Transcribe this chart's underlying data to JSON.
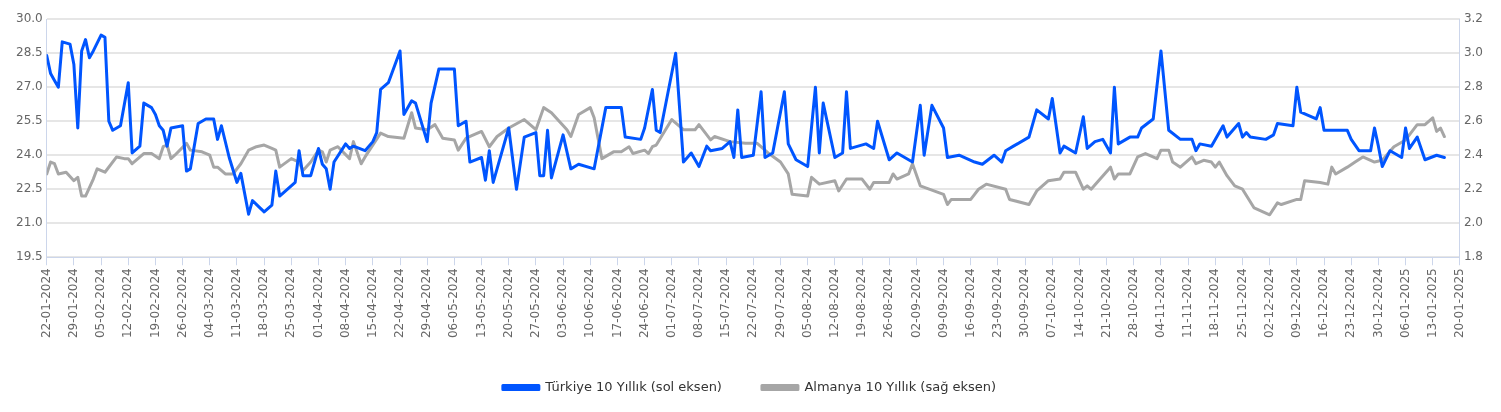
{
  "chart_data": {
    "type": "line",
    "legend": "bottom",
    "grid": "y",
    "line_style": "solid",
    "xlim": [
      "2024-01-22",
      "2025-01-20"
    ],
    "xticks": [
      {
        "value": "2024-01-22",
        "label": "22-01-2024"
      },
      {
        "value": "2024-01-29",
        "label": "29-01-2024"
      },
      {
        "value": "2024-02-05",
        "label": "05-02-2024"
      },
      {
        "value": "2024-02-12",
        "label": "12-02-2024"
      },
      {
        "value": "2024-02-19",
        "label": "19-02-2024"
      },
      {
        "value": "2024-02-26",
        "label": "26-02-2024"
      },
      {
        "value": "2024-03-04",
        "label": "04-03-2024"
      },
      {
        "value": "2024-03-11",
        "label": "11-03-2024"
      },
      {
        "value": "2024-03-18",
        "label": "18-03-2024"
      },
      {
        "value": "2024-03-25",
        "label": "25-03-2024"
      },
      {
        "value": "2024-04-01",
        "label": "01-04-2024"
      },
      {
        "value": "2024-04-08",
        "label": "08-04-2024"
      },
      {
        "value": "2024-04-15",
        "label": "15-04-2024"
      },
      {
        "value": "2024-04-22",
        "label": "22-04-2024"
      },
      {
        "value": "2024-04-29",
        "label": "29-04-2024"
      },
      {
        "value": "2024-05-06",
        "label": "06-05-2024"
      },
      {
        "value": "2024-05-13",
        "label": "13-05-2024"
      },
      {
        "value": "2024-05-20",
        "label": "20-05-2024"
      },
      {
        "value": "2024-05-27",
        "label": "27-05-2024"
      },
      {
        "value": "2024-06-03",
        "label": "03-06-2024"
      },
      {
        "value": "2024-06-10",
        "label": "10-06-2024"
      },
      {
        "value": "2024-06-17",
        "label": "17-06-2024"
      },
      {
        "value": "2024-06-24",
        "label": "24-06-2024"
      },
      {
        "value": "2024-07-01",
        "label": "01-07-2024"
      },
      {
        "value": "2024-07-08",
        "label": "08-07-2024"
      },
      {
        "value": "2024-07-15",
        "label": "15-07-2024"
      },
      {
        "value": "2024-07-22",
        "label": "22-07-2024"
      },
      {
        "value": "2024-07-29",
        "label": "29-07-2024"
      },
      {
        "value": "2024-08-05",
        "label": "05-08-2024"
      },
      {
        "value": "2024-08-12",
        "label": "12-08-2024"
      },
      {
        "value": "2024-08-19",
        "label": "19-08-2024"
      },
      {
        "value": "2024-08-26",
        "label": "26-08-2024"
      },
      {
        "value": "2024-09-02",
        "label": "02-09-2024"
      },
      {
        "value": "2024-09-09",
        "label": "09-09-2024"
      },
      {
        "value": "2024-09-16",
        "label": "16-09-2024"
      },
      {
        "value": "2024-09-23",
        "label": "23-09-2024"
      },
      {
        "value": "2024-09-30",
        "label": "30-09-2024"
      },
      {
        "value": "2024-10-07",
        "label": "07-10-2024"
      },
      {
        "value": "2024-10-14",
        "label": "14-10-2024"
      },
      {
        "value": "2024-10-21",
        "label": "21-10-2024"
      },
      {
        "value": "2024-10-28",
        "label": "28-10-2024"
      },
      {
        "value": "2024-11-04",
        "label": "04-11-2024"
      },
      {
        "value": "2024-11-11",
        "label": "11-11-2024"
      },
      {
        "value": "2024-11-18",
        "label": "18-11-2024"
      },
      {
        "value": "2024-11-25",
        "label": "25-11-2024"
      },
      {
        "value": "2024-12-02",
        "label": "02-12-2024"
      },
      {
        "value": "2024-12-09",
        "label": "09-12-2024"
      },
      {
        "value": "2024-12-16",
        "label": "16-12-2024"
      },
      {
        "value": "2024-12-23",
        "label": "23-12-2024"
      },
      {
        "value": "2024-12-30",
        "label": "30-12-2024"
      },
      {
        "value": "2025-01-06",
        "label": "06-01-2025"
      },
      {
        "value": "2025-01-13",
        "label": "13-01-2025"
      },
      {
        "value": "2025-01-20",
        "label": "20-01-2025"
      }
    ],
    "ylim": [
      19.5,
      30
    ],
    "yticks": [
      19.5,
      {
        "value": 21,
        "label": "21.0"
      },
      22.5,
      {
        "value": 24,
        "label": "24.0"
      },
      25.5,
      {
        "value": 27,
        "label": "27.0"
      },
      28.5,
      {
        "value": 30,
        "label": "30.0"
      }
    ],
    "y2lim": [
      1.8,
      3.2
    ],
    "y2ticks": [
      1.8,
      {
        "value": 2,
        "label": "2.0"
      },
      2.2,
      2.4,
      2.6,
      2.8,
      {
        "value": 3,
        "label": "3.0"
      },
      3.2
    ],
    "series": [
      {
        "name": "Türkiye 10 Yıllık (sol eksen)",
        "color": "#0055ff",
        "x": [
          "2024-01-22",
          "2024-01-23",
          "2024-01-24",
          "2024-01-25",
          "2024-01-26",
          "2024-01-28",
          "2024-01-29",
          "2024-01-30",
          "2024-01-31",
          "2024-02-01",
          "2024-02-02",
          "2024-02-03",
          "2024-02-05",
          "2024-02-06",
          "2024-02-07",
          "2024-02-08",
          "2024-02-10",
          "2024-02-12",
          "2024-02-13",
          "2024-02-15",
          "2024-02-16",
          "2024-02-18",
          "2024-02-19",
          "2024-02-20",
          "2024-02-21",
          "2024-02-22",
          "2024-02-23",
          "2024-02-26",
          "2024-02-27",
          "2024-02-28",
          "2024-03-01",
          "2024-03-03",
          "2024-03-05",
          "2024-03-06",
          "2024-03-07",
          "2024-03-09",
          "2024-03-11",
          "2024-03-12",
          "2024-03-14",
          "2024-03-15",
          "2024-03-18",
          "2024-03-20",
          "2024-03-21",
          "2024-03-22",
          "2024-03-26",
          "2024-03-27",
          "2024-03-28",
          "2024-03-30",
          "2024-04-01",
          "2024-04-02",
          "2024-04-03",
          "2024-04-04",
          "2024-04-05",
          "2024-04-08",
          "2024-04-09",
          "2024-04-10",
          "2024-04-13",
          "2024-04-15",
          "2024-04-16",
          "2024-04-17",
          "2024-04-19",
          "2024-04-22",
          "2024-04-23",
          "2024-04-25",
          "2024-04-26",
          "2024-04-29",
          "2024-04-30",
          "2024-05-02",
          "2024-05-06",
          "2024-05-07",
          "2024-05-09",
          "2024-05-10",
          "2024-05-13",
          "2024-05-14",
          "2024-05-15",
          "2024-05-16",
          "2024-05-20",
          "2024-05-22",
          "2024-05-24",
          "2024-05-27",
          "2024-05-28",
          "2024-05-29",
          "2024-05-30",
          "2024-05-31",
          "2024-06-03",
          "2024-06-05",
          "2024-06-07",
          "2024-06-11",
          "2024-06-14",
          "2024-06-18",
          "2024-06-19",
          "2024-06-23",
          "2024-06-24",
          "2024-06-26",
          "2024-06-27",
          "2024-06-28",
          "2024-07-02",
          "2024-07-04",
          "2024-07-06",
          "2024-07-08",
          "2024-07-10",
          "2024-07-11",
          "2024-07-14",
          "2024-07-16",
          "2024-07-17",
          "2024-07-18",
          "2024-07-19",
          "2024-07-22",
          "2024-07-24",
          "2024-07-25",
          "2024-07-27",
          "2024-07-30",
          "2024-07-31",
          "2024-08-02",
          "2024-08-05",
          "2024-08-07",
          "2024-08-08",
          "2024-08-09",
          "2024-08-12",
          "2024-08-14",
          "2024-08-15",
          "2024-08-16",
          "2024-08-20",
          "2024-08-22",
          "2024-08-23",
          "2024-08-26",
          "2024-08-28",
          "2024-09-01",
          "2024-09-03",
          "2024-09-04",
          "2024-09-06",
          "2024-09-09",
          "2024-09-10",
          "2024-09-13",
          "2024-09-17",
          "2024-09-19",
          "2024-09-22",
          "2024-09-24",
          "2024-09-25",
          "2024-09-27",
          "2024-10-01",
          "2024-10-03",
          "2024-10-06",
          "2024-10-07",
          "2024-10-09",
          "2024-10-10",
          "2024-10-13",
          "2024-10-15",
          "2024-10-16",
          "2024-10-18",
          "2024-10-20",
          "2024-10-22",
          "2024-10-23",
          "2024-10-24",
          "2024-10-27",
          "2024-10-29",
          "2024-10-30",
          "2024-11-02",
          "2024-11-04",
          "2024-11-06",
          "2024-11-09",
          "2024-11-12",
          "2024-11-13",
          "2024-11-14",
          "2024-11-17",
          "2024-11-20",
          "2024-11-21",
          "2024-11-24",
          "2024-11-25",
          "2024-11-26",
          "2024-11-27",
          "2024-12-01",
          "2024-12-03",
          "2024-12-04",
          "2024-12-08",
          "2024-12-09",
          "2024-12-10",
          "2024-12-14",
          "2024-12-15",
          "2024-12-16",
          "2024-12-22",
          "2024-12-23",
          "2024-12-25",
          "2024-12-28",
          "2024-12-29",
          "2024-12-30",
          "2024-12-31",
          "2025-01-02",
          "2025-01-05",
          "2025-01-06",
          "2025-01-07",
          "2025-01-09",
          "2025-01-11",
          "2025-01-14",
          "2025-01-16"
        ],
        "values": [
          28.4,
          27.6,
          27.3,
          27.0,
          29.0,
          28.9,
          28.0,
          25.2,
          28.6,
          29.1,
          28.3,
          28.6,
          29.3,
          29.2,
          25.5,
          25.1,
          25.3,
          27.2,
          24.1,
          24.4,
          26.3,
          26.1,
          25.8,
          25.3,
          25.1,
          24.4,
          25.2,
          25.3,
          23.3,
          23.4,
          25.4,
          25.6,
          25.6,
          24.7,
          25.3,
          23.9,
          22.8,
          23.2,
          21.4,
          22.0,
          21.5,
          21.8,
          23.3,
          22.2,
          22.8,
          24.2,
          23.1,
          23.1,
          24.3,
          23.6,
          23.4,
          22.5,
          23.7,
          24.5,
          24.3,
          24.4,
          24.2,
          24.6,
          25.0,
          26.9,
          27.2,
          28.6,
          25.8,
          26.4,
          26.3,
          24.6,
          26.3,
          27.8,
          27.8,
          25.3,
          25.5,
          23.7,
          23.9,
          22.9,
          24.2,
          22.8,
          25.2,
          22.5,
          24.8,
          25.0,
          23.1,
          23.1,
          25.1,
          23.0,
          24.9,
          23.4,
          23.6,
          23.4,
          26.1,
          26.1,
          24.8,
          24.7,
          25.2,
          26.9,
          25.1,
          25.0,
          28.5,
          23.7,
          24.1,
          23.5,
          24.4,
          24.2,
          24.3,
          24.6,
          23.9,
          26.0,
          23.9,
          24.0,
          26.8,
          23.9,
          24.1,
          26.8,
          24.5,
          23.8,
          23.5,
          27.0,
          24.1,
          26.3,
          23.9,
          24.1,
          26.8,
          24.3,
          24.5,
          24.3,
          25.5,
          23.8,
          24.1,
          23.7,
          26.2,
          24.0,
          26.2,
          25.2,
          23.9,
          24.0,
          23.7,
          23.6,
          24.0,
          23.7,
          24.2,
          24.4,
          24.8,
          26.0,
          25.6,
          26.5,
          24.1,
          24.4,
          24.1,
          25.7,
          24.3,
          24.6,
          24.7,
          24.1,
          27.0,
          24.5,
          24.8,
          24.8,
          25.2,
          25.6,
          28.6,
          25.1,
          24.7,
          24.7,
          24.2,
          24.5,
          24.4,
          25.3,
          24.8,
          25.4,
          24.8,
          25.0,
          24.8,
          24.7,
          24.9,
          25.4,
          25.3,
          27.0,
          25.9,
          25.6,
          26.1,
          25.1,
          25.1,
          24.7,
          24.2,
          24.2,
          25.2,
          24.4,
          23.5,
          24.2,
          23.9,
          25.2,
          24.3,
          24.8,
          23.8,
          24.0,
          23.9
        ]
      },
      {
        "name": "Almanya 10 Yıllık (sağ eksen)",
        "color": "#a6a6a6",
        "axis": "y2",
        "x": [
          "2024-01-22",
          "2024-01-23",
          "2024-01-24",
          "2024-01-25",
          "2024-01-27",
          "2024-01-29",
          "2024-01-30",
          "2024-01-31",
          "2024-02-01",
          "2024-02-03",
          "2024-02-04",
          "2024-02-06",
          "2024-02-09",
          "2024-02-11",
          "2024-02-12",
          "2024-02-13",
          "2024-02-16",
          "2024-02-18",
          "2024-02-20",
          "2024-02-21",
          "2024-02-22",
          "2024-02-23",
          "2024-02-24",
          "2024-02-27",
          "2024-02-28",
          "2024-03-02",
          "2024-03-04",
          "2024-03-05",
          "2024-03-06",
          "2024-03-08",
          "2024-03-10",
          "2024-03-12",
          "2024-03-14",
          "2024-03-16",
          "2024-03-18",
          "2024-03-20",
          "2024-03-21",
          "2024-03-22",
          "2024-03-25",
          "2024-03-27",
          "2024-03-28",
          "2024-03-30",
          "2024-04-01",
          "2024-04-02",
          "2024-04-03",
          "2024-04-04",
          "2024-04-06",
          "2024-04-09",
          "2024-04-10",
          "2024-04-12",
          "2024-04-13",
          "2024-04-17",
          "2024-04-19",
          "2024-04-23",
          "2024-04-25",
          "2024-04-26",
          "2024-04-29",
          "2024-05-01",
          "2024-05-03",
          "2024-05-06",
          "2024-05-07",
          "2024-05-09",
          "2024-05-13",
          "2024-05-15",
          "2024-05-17",
          "2024-05-20",
          "2024-05-24",
          "2024-05-27",
          "2024-05-29",
          "2024-05-31",
          "2024-06-04",
          "2024-06-05",
          "2024-06-07",
          "2024-06-10",
          "2024-06-11",
          "2024-06-13",
          "2024-06-16",
          "2024-06-18",
          "2024-06-20",
          "2024-06-21",
          "2024-06-24",
          "2024-06-25",
          "2024-06-26",
          "2024-06-27",
          "2024-07-01",
          "2024-07-04",
          "2024-07-07",
          "2024-07-08",
          "2024-07-11",
          "2024-07-12",
          "2024-07-16",
          "2024-07-20",
          "2024-07-23",
          "2024-07-26",
          "2024-07-29",
          "2024-07-31",
          "2024-08-01",
          "2024-08-05",
          "2024-08-06",
          "2024-08-08",
          "2024-08-12",
          "2024-08-13",
          "2024-08-15",
          "2024-08-19",
          "2024-08-21",
          "2024-08-22",
          "2024-08-26",
          "2024-08-27",
          "2024-08-28",
          "2024-08-31",
          "2024-09-01",
          "2024-09-03",
          "2024-09-09",
          "2024-09-10",
          "2024-09-11",
          "2024-09-16",
          "2024-09-17",
          "2024-09-18",
          "2024-09-20",
          "2024-09-25",
          "2024-09-26",
          "2024-10-01",
          "2024-10-03",
          "2024-10-06",
          "2024-10-09",
          "2024-10-10",
          "2024-10-13",
          "2024-10-15",
          "2024-10-16",
          "2024-10-17",
          "2024-10-22",
          "2024-10-23",
          "2024-10-24",
          "2024-10-27",
          "2024-10-29",
          "2024-10-31",
          "2024-11-03",
          "2024-11-04",
          "2024-11-06",
          "2024-11-07",
          "2024-11-09",
          "2024-11-12",
          "2024-11-13",
          "2024-11-15",
          "2024-11-17",
          "2024-11-18",
          "2024-11-19",
          "2024-11-21",
          "2024-11-23",
          "2024-11-25",
          "2024-11-28",
          "2024-12-02",
          "2024-12-04",
          "2024-12-05",
          "2024-12-09",
          "2024-12-10",
          "2024-12-11",
          "2024-12-15",
          "2024-12-17",
          "2024-12-18",
          "2024-12-19",
          "2024-12-22",
          "2024-12-24",
          "2024-12-26",
          "2024-12-29",
          "2024-12-31",
          "2025-01-03",
          "2025-01-06",
          "2025-01-09",
          "2025-01-11",
          "2025-01-13",
          "2025-01-14",
          "2025-01-15",
          "2025-01-16"
        ],
        "values": [
          2.29,
          2.36,
          2.35,
          2.29,
          2.3,
          2.25,
          2.27,
          2.16,
          2.16,
          2.26,
          2.32,
          2.3,
          2.39,
          2.38,
          2.38,
          2.35,
          2.41,
          2.41,
          2.38,
          2.45,
          2.46,
          2.38,
          2.4,
          2.47,
          2.43,
          2.42,
          2.4,
          2.33,
          2.33,
          2.29,
          2.29,
          2.35,
          2.43,
          2.45,
          2.46,
          2.44,
          2.43,
          2.33,
          2.38,
          2.36,
          2.31,
          2.36,
          2.43,
          2.42,
          2.36,
          2.43,
          2.45,
          2.38,
          2.48,
          2.35,
          2.39,
          2.53,
          2.51,
          2.5,
          2.65,
          2.56,
          2.55,
          2.58,
          2.5,
          2.49,
          2.43,
          2.5,
          2.54,
          2.45,
          2.51,
          2.56,
          2.61,
          2.55,
          2.68,
          2.65,
          2.55,
          2.51,
          2.64,
          2.68,
          2.62,
          2.38,
          2.42,
          2.42,
          2.45,
          2.41,
          2.43,
          2.41,
          2.45,
          2.46,
          2.61,
          2.55,
          2.55,
          2.58,
          2.49,
          2.51,
          2.48,
          2.47,
          2.47,
          2.41,
          2.36,
          2.29,
          2.17,
          2.16,
          2.27,
          2.23,
          2.25,
          2.19,
          2.26,
          2.26,
          2.2,
          2.24,
          2.24,
          2.29,
          2.26,
          2.29,
          2.35,
          2.22,
          2.17,
          2.11,
          2.14,
          2.14,
          2.17,
          2.2,
          2.23,
          2.2,
          2.14,
          2.11,
          2.19,
          2.25,
          2.26,
          2.3,
          2.3,
          2.2,
          2.22,
          2.2,
          2.33,
          2.26,
          2.29,
          2.29,
          2.39,
          2.41,
          2.38,
          2.43,
          2.43,
          2.36,
          2.33,
          2.39,
          2.35,
          2.37,
          2.36,
          2.33,
          2.36,
          2.28,
          2.22,
          2.2,
          2.09,
          2.05,
          2.12,
          2.11,
          2.14,
          2.14,
          2.25,
          2.24,
          2.23,
          2.33,
          2.29,
          2.33,
          2.36,
          2.39,
          2.36,
          2.37,
          2.45,
          2.49,
          2.58,
          2.58,
          2.62,
          2.54,
          2.56,
          2.51
        ]
      }
    ]
  }
}
